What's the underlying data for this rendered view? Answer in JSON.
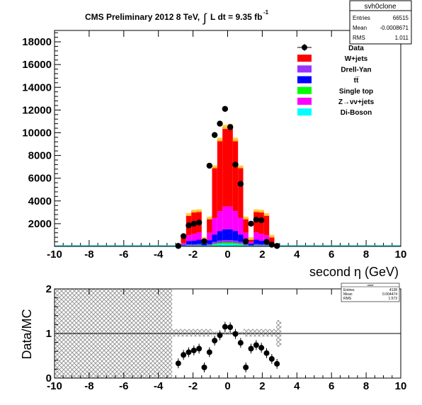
{
  "title_main": "CMS Preliminary 2012 8 TeV,",
  "title_lumi": "L dt = 9.35 fb",
  "title_lumi_sup": "-1",
  "stats_top": {
    "name": "svh0clone",
    "rows": [
      {
        "label": "Entries",
        "value": "66515"
      },
      {
        "label": "Mean",
        "value": "-0.0008671"
      },
      {
        "label": "RMS",
        "value": "1.011"
      }
    ]
  },
  "stats_bottom": {
    "name": "dataf",
    "rows": [
      {
        "label": "Entries",
        "value": "4138"
      },
      {
        "label": "Mean",
        "value": "0.004474"
      },
      {
        "label": "RMS",
        "value": "1.573"
      }
    ]
  },
  "legend": [
    {
      "label": "Data",
      "color": "#000000",
      "style": "marker"
    },
    {
      "label": "W+jets",
      "color": "#ff0000",
      "style": "fill"
    },
    {
      "label": "Drell-Yan",
      "color": "#9933ff",
      "style": "fill"
    },
    {
      "label": "tt̅",
      "color": "#0000ff",
      "style": "fill"
    },
    {
      "label": "Single top",
      "color": "#00ff00",
      "style": "fill"
    },
    {
      "label": "Z→νν+jets",
      "color": "#ff00ff",
      "style": "fill"
    },
    {
      "label": "Di-Boson",
      "color": "#00ffff",
      "style": "fill"
    }
  ],
  "chart_data": [
    {
      "type": "bar",
      "stacked": true,
      "xlabel": "second η (GeV)",
      "ylabel": "",
      "xlim": [
        -10,
        10
      ],
      "ylim": [
        0,
        19000
      ],
      "xticks": [
        -10,
        -8,
        -6,
        -4,
        -2,
        0,
        2,
        4,
        6,
        8,
        10
      ],
      "yticks": [
        2000,
        4000,
        6000,
        8000,
        10000,
        12000,
        14000,
        16000,
        18000
      ],
      "bin_edges": [
        -3,
        -2.7,
        -2.4,
        -2.1,
        -1.8,
        -1.5,
        -1.2,
        -0.9,
        -0.6,
        -0.3,
        0,
        0.3,
        0.6,
        0.9,
        1.2,
        1.5,
        1.8,
        2.1,
        2.4,
        2.7,
        3
      ],
      "stack_order": [
        "Di-Boson",
        "Single top",
        "Drell-Yan",
        "tt̅",
        "Z→νν+jets",
        "W+jets"
      ],
      "series": [
        {
          "name": "Di-Boson",
          "color": "#00ffff",
          "values": [
            5,
            15,
            60,
            60,
            70,
            30,
            60,
            140,
            180,
            200,
            200,
            180,
            140,
            60,
            30,
            70,
            60,
            60,
            15,
            5
          ]
        },
        {
          "name": "Single top",
          "color": "#00ff00",
          "values": [
            5,
            15,
            40,
            40,
            50,
            20,
            50,
            100,
            130,
            140,
            140,
            130,
            100,
            50,
            20,
            50,
            40,
            40,
            15,
            5
          ]
        },
        {
          "name": "Drell-Yan",
          "color": "#9933ff",
          "values": [
            5,
            20,
            80,
            80,
            90,
            40,
            90,
            160,
            200,
            220,
            220,
            200,
            160,
            90,
            40,
            90,
            80,
            80,
            20,
            5
          ]
        },
        {
          "name": "tt̅",
          "color": "#0000ff",
          "values": [
            10,
            90,
            300,
            320,
            380,
            150,
            350,
            650,
            850,
            950,
            950,
            850,
            650,
            350,
            150,
            380,
            320,
            300,
            90,
            10
          ]
        },
        {
          "name": "Z→νν+jets",
          "color": "#ff00ff",
          "values": [
            15,
            160,
            500,
            600,
            650,
            150,
            650,
            1450,
            1750,
            2000,
            2000,
            1750,
            1450,
            650,
            150,
            650,
            600,
            500,
            160,
            15
          ]
        },
        {
          "name": "W+jets",
          "color": "#ff0000",
          "values": [
            60,
            600,
            1800,
            2000,
            1900,
            300,
            1300,
            4500,
            6300,
            7000,
            7100,
            6300,
            4500,
            1300,
            300,
            1900,
            2000,
            1800,
            600,
            60
          ]
        }
      ],
      "mc_total": [
        100,
        900,
        2800,
        3100,
        3140,
        690,
        2500,
        7000,
        9410,
        10510,
        10610,
        9410,
        7000,
        2500,
        690,
        3140,
        3100,
        2800,
        900,
        100
      ],
      "data": {
        "name": "Data",
        "x": [
          -2.85,
          -2.55,
          -2.25,
          -1.95,
          -1.65,
          -1.35,
          -1.05,
          -0.75,
          -0.45,
          -0.15,
          0.15,
          0.45,
          0.75,
          1.05,
          1.35,
          1.65,
          1.95,
          2.25,
          2.55,
          2.85
        ],
        "y": [
          40,
          900,
          1850,
          2000,
          2100,
          450,
          7100,
          9800,
          10800,
          12100,
          10500,
          7200,
          5500,
          450,
          2000,
          2350,
          2300,
          400,
          150,
          40
        ]
      }
    },
    {
      "type": "scatter",
      "xlabel": "",
      "ylabel": "Data/MC",
      "xlim": [
        -10,
        10
      ],
      "ylim": [
        0,
        2
      ],
      "xticks": [
        -10,
        -8,
        -6,
        -4,
        -2,
        0,
        2,
        4,
        6,
        8,
        10
      ],
      "yticks": [
        0,
        1,
        2
      ],
      "reference_line": 1,
      "points": {
        "x": [
          -2.85,
          -2.55,
          -2.25,
          -1.95,
          -1.65,
          -1.35,
          -1.05,
          -0.75,
          -0.45,
          -0.15,
          0.15,
          0.45,
          0.75,
          1.05,
          1.35,
          1.65,
          1.95,
          2.25,
          2.55,
          2.85
        ],
        "y": [
          0.33,
          0.52,
          0.58,
          0.62,
          0.66,
          0.24,
          0.58,
          0.84,
          0.96,
          1.15,
          1.14,
          0.99,
          0.79,
          0.24,
          0.66,
          0.74,
          0.68,
          0.56,
          0.43,
          0.32
        ]
      },
      "uncertainty_band": {
        "x": [
          -10,
          -3.2,
          -3.2,
          -0.9,
          -0.9,
          0.9,
          0.9,
          2.8,
          2.8,
          3.1
        ],
        "y_low": [
          0,
          0,
          0.93,
          0.93,
          0.97,
          0.97,
          0.93,
          0.93,
          0.7,
          0.7
        ],
        "y_high": [
          2,
          2,
          1.1,
          1.1,
          1.04,
          1.04,
          1.1,
          1.1,
          1.3,
          1.3
        ]
      }
    }
  ]
}
